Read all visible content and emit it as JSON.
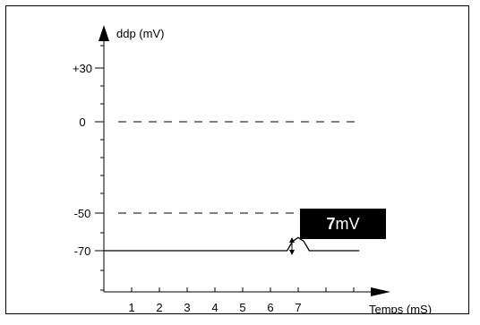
{
  "chart_data": {
    "type": "line",
    "title": "",
    "ylabel": "ddp (mV)",
    "xlabel": "Temps (mS)",
    "x_ticks": [
      "1",
      "2",
      "3",
      "4",
      "5",
      "6",
      "7"
    ],
    "y_ticks": [
      "+30",
      "0",
      "-50",
      "-70"
    ],
    "y_scale": "piecewise (axis not linear)",
    "reference_lines": [
      {
        "name": "0 mV level",
        "y": 0,
        "style": "dashed"
      },
      {
        "name": "-50 mV level",
        "y": -50,
        "style": "dashed"
      }
    ],
    "series": [
      {
        "points": [
          {
            "x": 0,
            "y": -70
          },
          {
            "x": 6.6,
            "y": -70
          },
          {
            "x": 6.8,
            "y": -65
          },
          {
            "x": 7.0,
            "y": -63
          },
          {
            "x": 7.2,
            "y": -65
          },
          {
            "x": 7.4,
            "y": -70
          },
          {
            "x": 9.2,
            "y": -70
          }
        ]
      }
    ],
    "annotation": {
      "value": "7",
      "unit": "mV"
    },
    "colors": {
      "line": "#000000",
      "label_box": "#000000",
      "label_text": "#ffffff"
    }
  }
}
